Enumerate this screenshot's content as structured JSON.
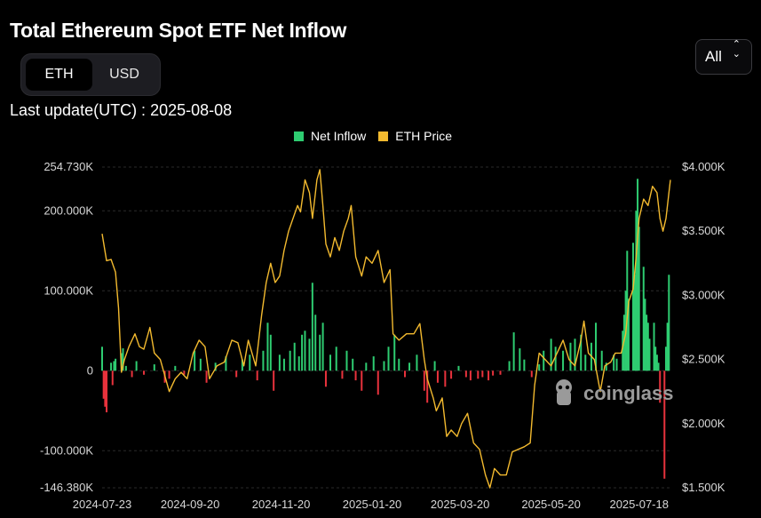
{
  "header": {
    "title": "Total Ethereum Spot ETF Net Inflow"
  },
  "unit_toggle": {
    "options": [
      "ETH",
      "USD"
    ],
    "selected": "ETH"
  },
  "range_select": {
    "selected": "All"
  },
  "last_update": "Last update(UTC) : 2025-08-08",
  "watermark": "coinglass",
  "colors": {
    "inflow_positive": "#2ecc71",
    "inflow_negative": "#e8323c",
    "price_line": "#f3ba2f",
    "background": "#000000"
  },
  "chart_data": {
    "type": "bar",
    "title": "Total Ethereum Spot ETF Net Inflow",
    "legend": {
      "placement": "top-center",
      "entries": [
        "Net Inflow",
        "ETH Price"
      ]
    },
    "grid": true,
    "x_ticks": [
      "2024-07-23",
      "2024-09-20",
      "2024-11-20",
      "2025-01-20",
      "2025-03-20",
      "2025-05-20",
      "2025-07-18"
    ],
    "y_left": {
      "ticks": [
        "254.730K",
        "200.000K",
        "100.000K",
        "0",
        "-100.000K",
        "-146.380K"
      ],
      "range": [
        -146380,
        254730
      ]
    },
    "y_right": {
      "ticks": [
        "$4.000K",
        "$3.500K",
        "$3.000K",
        "$2.500K",
        "$2.000K",
        "$1.500K"
      ],
      "range": [
        1500,
        4000
      ]
    },
    "x_range": [
      "2024-07-23",
      "2025-08-08"
    ],
    "series": [
      {
        "name": "Net Inflow",
        "type": "bar",
        "points": [
          [
            "2024-07-23",
            30000
          ],
          [
            "2024-07-24",
            -35000
          ],
          [
            "2024-07-25",
            -45000
          ],
          [
            "2024-07-26",
            -52000
          ],
          [
            "2024-07-29",
            10000
          ],
          [
            "2024-07-30",
            -18000
          ],
          [
            "2024-07-31",
            12000
          ],
          [
            "2024-08-01",
            15000
          ],
          [
            "2024-08-05",
            22000
          ],
          [
            "2024-08-06",
            28000
          ],
          [
            "2024-08-08",
            6000
          ],
          [
            "2024-08-12",
            -8000
          ],
          [
            "2024-08-15",
            12000
          ],
          [
            "2024-08-20",
            -5000
          ],
          [
            "2024-08-27",
            8000
          ],
          [
            "2024-09-03",
            -15000
          ],
          [
            "2024-09-06",
            -10000
          ],
          [
            "2024-09-10",
            6000
          ],
          [
            "2024-09-16",
            -5000
          ],
          [
            "2024-09-23",
            25000
          ],
          [
            "2024-09-27",
            15000
          ],
          [
            "2024-10-01",
            -15000
          ],
          [
            "2024-10-07",
            10000
          ],
          [
            "2024-10-14",
            18000
          ],
          [
            "2024-10-21",
            -8000
          ],
          [
            "2024-10-25",
            14000
          ],
          [
            "2024-10-30",
            20000
          ],
          [
            "2024-11-04",
            -12000
          ],
          [
            "2024-11-08",
            25000
          ],
          [
            "2024-11-11",
            60000
          ],
          [
            "2024-11-13",
            45000
          ],
          [
            "2024-11-15",
            -25000
          ],
          [
            "2024-11-19",
            20000
          ],
          [
            "2024-11-22",
            15000
          ],
          [
            "2024-11-26",
            25000
          ],
          [
            "2024-11-29",
            35000
          ],
          [
            "2024-12-02",
            18000
          ],
          [
            "2024-12-04",
            45000
          ],
          [
            "2024-12-06",
            50000
          ],
          [
            "2024-12-09",
            40000
          ],
          [
            "2024-12-11",
            110000
          ],
          [
            "2024-12-13",
            70000
          ],
          [
            "2024-12-16",
            45000
          ],
          [
            "2024-12-18",
            60000
          ],
          [
            "2024-12-20",
            -20000
          ],
          [
            "2024-12-23",
            20000
          ],
          [
            "2024-12-27",
            30000
          ],
          [
            "2024-12-31",
            -10000
          ],
          [
            "2025-01-03",
            25000
          ],
          [
            "2025-01-07",
            15000
          ],
          [
            "2025-01-09",
            -12000
          ],
          [
            "2025-01-13",
            -25000
          ],
          [
            "2025-01-16",
            10000
          ],
          [
            "2025-01-21",
            18000
          ],
          [
            "2025-01-24",
            -30000
          ],
          [
            "2025-01-28",
            12000
          ],
          [
            "2025-01-31",
            30000
          ],
          [
            "2025-02-04",
            45000
          ],
          [
            "2025-02-07",
            15000
          ],
          [
            "2025-02-11",
            -8000
          ],
          [
            "2025-02-14",
            10000
          ],
          [
            "2025-02-19",
            20000
          ],
          [
            "2025-02-24",
            -25000
          ],
          [
            "2025-02-26",
            -40000
          ],
          [
            "2025-03-03",
            12000
          ],
          [
            "2025-03-05",
            -15000
          ],
          [
            "2025-03-10",
            -20000
          ],
          [
            "2025-03-14",
            -10000
          ],
          [
            "2025-03-19",
            6000
          ],
          [
            "2025-03-24",
            -8000
          ],
          [
            "2025-03-27",
            -12000
          ],
          [
            "2025-04-01",
            -10000
          ],
          [
            "2025-04-04",
            -8000
          ],
          [
            "2025-04-08",
            -12000
          ],
          [
            "2025-04-11",
            -6000
          ],
          [
            "2025-04-16",
            -5000
          ],
          [
            "2025-04-22",
            12000
          ],
          [
            "2025-04-25",
            48000
          ],
          [
            "2025-04-29",
            28000
          ],
          [
            "2025-05-02",
            14000
          ],
          [
            "2025-05-07",
            -8000
          ],
          [
            "2025-05-12",
            8000
          ],
          [
            "2025-05-15",
            25000
          ],
          [
            "2025-05-20",
            40000
          ],
          [
            "2025-05-23",
            30000
          ],
          [
            "2025-05-28",
            25000
          ],
          [
            "2025-06-02",
            35000
          ],
          [
            "2025-06-05",
            40000
          ],
          [
            "2025-06-09",
            45000
          ],
          [
            "2025-06-12",
            20000
          ],
          [
            "2025-06-16",
            35000
          ],
          [
            "2025-06-19",
            60000
          ],
          [
            "2025-06-23",
            25000
          ],
          [
            "2025-06-26",
            10000
          ],
          [
            "2025-07-01",
            20000
          ],
          [
            "2025-07-03",
            15000
          ],
          [
            "2025-07-07",
            50000
          ],
          [
            "2025-07-08",
            70000
          ],
          [
            "2025-07-09",
            100000
          ],
          [
            "2025-07-10",
            150000
          ],
          [
            "2025-07-11",
            90000
          ],
          [
            "2025-07-14",
            160000
          ],
          [
            "2025-07-15",
            120000
          ],
          [
            "2025-07-16",
            200000
          ],
          [
            "2025-07-17",
            240000
          ],
          [
            "2025-07-18",
            180000
          ],
          [
            "2025-07-21",
            130000
          ],
          [
            "2025-07-22",
            90000
          ],
          [
            "2025-07-23",
            70000
          ],
          [
            "2025-07-24",
            60000
          ],
          [
            "2025-07-25",
            40000
          ],
          [
            "2025-07-28",
            60000
          ],
          [
            "2025-07-29",
            30000
          ],
          [
            "2025-07-30",
            20000
          ],
          [
            "2025-07-31",
            10000
          ],
          [
            "2025-08-01",
            -40000
          ],
          [
            "2025-08-04",
            -135000
          ],
          [
            "2025-08-05",
            30000
          ],
          [
            "2025-08-06",
            60000
          ],
          [
            "2025-08-07",
            120000
          ]
        ]
      },
      {
        "name": "ETH Price",
        "type": "line",
        "points": [
          [
            "2024-07-23",
            3480
          ],
          [
            "2024-07-26",
            3270
          ],
          [
            "2024-07-29",
            3280
          ],
          [
            "2024-08-01",
            3180
          ],
          [
            "2024-08-03",
            2900
          ],
          [
            "2024-08-05",
            2400
          ],
          [
            "2024-08-07",
            2500
          ],
          [
            "2024-08-10",
            2600
          ],
          [
            "2024-08-14",
            2700
          ],
          [
            "2024-08-17",
            2600
          ],
          [
            "2024-08-20",
            2580
          ],
          [
            "2024-08-24",
            2750
          ],
          [
            "2024-08-27",
            2550
          ],
          [
            "2024-08-31",
            2500
          ],
          [
            "2024-09-06",
            2250
          ],
          [
            "2024-09-10",
            2350
          ],
          [
            "2024-09-14",
            2400
          ],
          [
            "2024-09-18",
            2350
          ],
          [
            "2024-09-22",
            2550
          ],
          [
            "2024-09-26",
            2650
          ],
          [
            "2024-09-30",
            2600
          ],
          [
            "2024-10-03",
            2350
          ],
          [
            "2024-10-08",
            2450
          ],
          [
            "2024-10-13",
            2480
          ],
          [
            "2024-10-18",
            2650
          ],
          [
            "2024-10-22",
            2630
          ],
          [
            "2024-10-26",
            2450
          ],
          [
            "2024-10-29",
            2650
          ],
          [
            "2024-11-03",
            2450
          ],
          [
            "2024-11-07",
            2850
          ],
          [
            "2024-11-10",
            3100
          ],
          [
            "2024-11-13",
            3250
          ],
          [
            "2024-11-16",
            3100
          ],
          [
            "2024-11-19",
            3150
          ],
          [
            "2024-11-22",
            3350
          ],
          [
            "2024-11-25",
            3500
          ],
          [
            "2024-11-28",
            3600
          ],
          [
            "2024-12-01",
            3700
          ],
          [
            "2024-12-03",
            3650
          ],
          [
            "2024-12-06",
            3900
          ],
          [
            "2024-12-09",
            3800
          ],
          [
            "2024-12-11",
            3600
          ],
          [
            "2024-12-14",
            3900
          ],
          [
            "2024-12-16",
            3980
          ],
          [
            "2024-12-18",
            3700
          ],
          [
            "2024-12-20",
            3400
          ],
          [
            "2024-12-23",
            3300
          ],
          [
            "2024-12-26",
            3450
          ],
          [
            "2024-12-29",
            3350
          ],
          [
            "2025-01-01",
            3500
          ],
          [
            "2025-01-04",
            3600
          ],
          [
            "2025-01-06",
            3700
          ],
          [
            "2025-01-09",
            3300
          ],
          [
            "2025-01-13",
            3150
          ],
          [
            "2025-01-16",
            3300
          ],
          [
            "2025-01-20",
            3250
          ],
          [
            "2025-01-24",
            3350
          ],
          [
            "2025-01-28",
            3100
          ],
          [
            "2025-02-01",
            3200
          ],
          [
            "2025-02-03",
            2700
          ],
          [
            "2025-02-07",
            2650
          ],
          [
            "2025-02-12",
            2700
          ],
          [
            "2025-02-17",
            2700
          ],
          [
            "2025-02-21",
            2780
          ],
          [
            "2025-02-24",
            2500
          ],
          [
            "2025-02-26",
            2350
          ],
          [
            "2025-03-02",
            2200
          ],
          [
            "2025-03-04",
            2100
          ],
          [
            "2025-03-08",
            2200
          ],
          [
            "2025-03-11",
            1900
          ],
          [
            "2025-03-14",
            1950
          ],
          [
            "2025-03-18",
            1900
          ],
          [
            "2025-03-21",
            2000
          ],
          [
            "2025-03-25",
            2080
          ],
          [
            "2025-03-29",
            1850
          ],
          [
            "2025-04-02",
            1800
          ],
          [
            "2025-04-06",
            1600
          ],
          [
            "2025-04-09",
            1500
          ],
          [
            "2025-04-12",
            1650
          ],
          [
            "2025-04-16",
            1600
          ],
          [
            "2025-04-20",
            1600
          ],
          [
            "2025-04-24",
            1780
          ],
          [
            "2025-04-28",
            1800
          ],
          [
            "2025-05-02",
            1820
          ],
          [
            "2025-05-06",
            1850
          ],
          [
            "2025-05-09",
            2300
          ],
          [
            "2025-05-12",
            2550
          ],
          [
            "2025-05-16",
            2500
          ],
          [
            "2025-05-20",
            2450
          ],
          [
            "2025-05-24",
            2550
          ],
          [
            "2025-05-28",
            2650
          ],
          [
            "2025-06-01",
            2500
          ],
          [
            "2025-06-05",
            2450
          ],
          [
            "2025-06-09",
            2650
          ],
          [
            "2025-06-11",
            2800
          ],
          [
            "2025-06-14",
            2550
          ],
          [
            "2025-06-18",
            2500
          ],
          [
            "2025-06-22",
            2250
          ],
          [
            "2025-06-25",
            2450
          ],
          [
            "2025-06-29",
            2480
          ],
          [
            "2025-07-02",
            2550
          ],
          [
            "2025-07-06",
            2550
          ],
          [
            "2025-07-09",
            2700
          ],
          [
            "2025-07-11",
            2950
          ],
          [
            "2025-07-14",
            3050
          ],
          [
            "2025-07-16",
            3300
          ],
          [
            "2025-07-18",
            3600
          ],
          [
            "2025-07-21",
            3750
          ],
          [
            "2025-07-24",
            3700
          ],
          [
            "2025-07-27",
            3850
          ],
          [
            "2025-07-30",
            3800
          ],
          [
            "2025-08-01",
            3600
          ],
          [
            "2025-08-03",
            3500
          ],
          [
            "2025-08-05",
            3600
          ],
          [
            "2025-08-07",
            3800
          ],
          [
            "2025-08-08",
            3900
          ]
        ]
      }
    ]
  }
}
